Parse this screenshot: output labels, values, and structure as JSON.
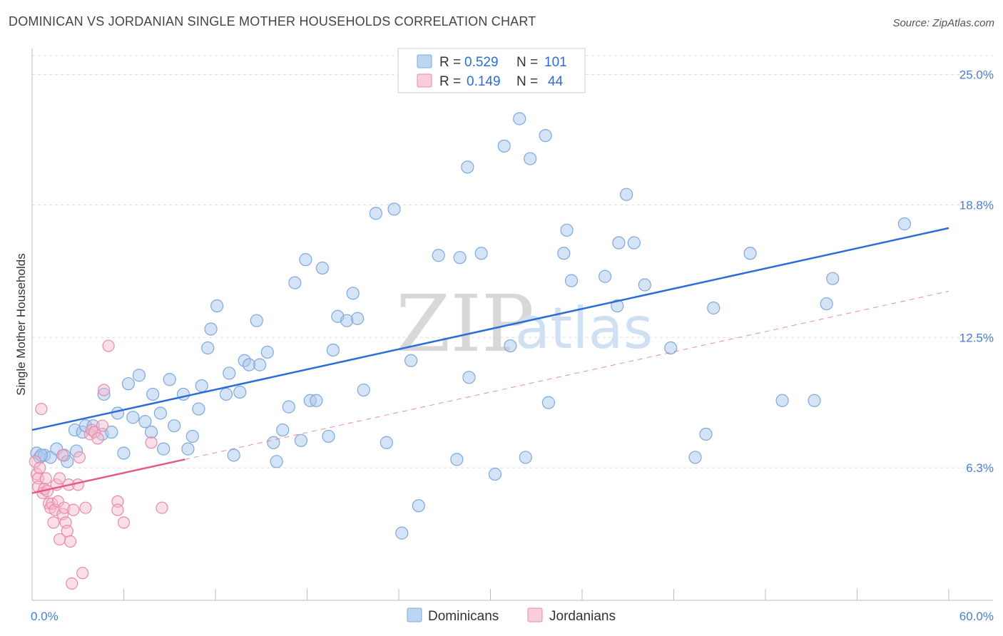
{
  "title": "DOMINICAN VS JORDANIAN SINGLE MOTHER HOUSEHOLDS CORRELATION CHART",
  "source": "Source: ZipAtlas.com",
  "watermark": {
    "zip": "ZIP",
    "atlas": "atlas"
  },
  "legend": {
    "dominicans": {
      "r_label": "R =",
      "r_value": "0.529",
      "n_label": "N =",
      "n_value": "101"
    },
    "jordanians": {
      "r_label": "R =",
      "r_value": "0.149",
      "n_label": "N =",
      "n_value": "44"
    }
  },
  "colors": {
    "dominican_fill": "#a9c8ec",
    "dominican_stroke": "#7fa8dc",
    "dominican_line": "#2a6dd9",
    "jordanian_fill": "#f6b9cd",
    "jordanian_stroke": "#e88aa8",
    "jordanian_line": "#e35a86"
  },
  "chart_data": {
    "type": "scatter",
    "title": "DOMINICAN VS JORDANIAN SINGLE MOTHER HOUSEHOLDS CORRELATION CHART",
    "xlabel": "",
    "ylabel": "Single Mother Households",
    "xlim": [
      0,
      60
    ],
    "ylim": [
      0,
      25.9
    ],
    "x_tick_labels": [
      "0.0%",
      "60.0%"
    ],
    "y_ticks": [
      6.3,
      12.5,
      18.8,
      25.0
    ],
    "y_tick_labels": [
      "6.3%",
      "12.5%",
      "18.8%",
      "25.0%"
    ],
    "legend_bottom": [
      "Dominicans",
      "Jordanians"
    ],
    "series": [
      {
        "name": "Dominicans",
        "trend": {
          "x": [
            0,
            60
          ],
          "y": [
            8.1,
            17.7
          ]
        },
        "points": [
          [
            0.3,
            7.0
          ],
          [
            0.5,
            6.8
          ],
          [
            0.8,
            6.9
          ],
          [
            1.2,
            6.8
          ],
          [
            1.6,
            7.2
          ],
          [
            2.1,
            6.9
          ],
          [
            2.3,
            6.6
          ],
          [
            2.8,
            8.1
          ],
          [
            2.9,
            7.1
          ],
          [
            3.3,
            8.0
          ],
          [
            3.5,
            8.3
          ],
          [
            4.0,
            8.3
          ],
          [
            4.6,
            7.9
          ],
          [
            4.7,
            9.8
          ],
          [
            5.2,
            8.0
          ],
          [
            5.6,
            8.9
          ],
          [
            6.0,
            7.0
          ],
          [
            6.3,
            10.3
          ],
          [
            6.6,
            8.7
          ],
          [
            7.0,
            10.7
          ],
          [
            7.4,
            8.5
          ],
          [
            7.8,
            8.0
          ],
          [
            7.9,
            9.8
          ],
          [
            8.4,
            8.9
          ],
          [
            8.6,
            7.2
          ],
          [
            9.0,
            10.5
          ],
          [
            9.3,
            8.3
          ],
          [
            9.9,
            9.8
          ],
          [
            10.2,
            7.2
          ],
          [
            10.5,
            7.8
          ],
          [
            10.9,
            9.1
          ],
          [
            11.1,
            10.2
          ],
          [
            11.5,
            12.0
          ],
          [
            11.7,
            12.9
          ],
          [
            12.1,
            14.0
          ],
          [
            12.7,
            9.8
          ],
          [
            12.9,
            10.8
          ],
          [
            13.2,
            6.9
          ],
          [
            13.6,
            9.9
          ],
          [
            13.9,
            11.4
          ],
          [
            14.2,
            11.2
          ],
          [
            14.7,
            13.3
          ],
          [
            14.9,
            11.2
          ],
          [
            15.4,
            11.8
          ],
          [
            15.8,
            7.5
          ],
          [
            16.0,
            6.6
          ],
          [
            16.4,
            8.1
          ],
          [
            16.8,
            9.2
          ],
          [
            17.2,
            15.1
          ],
          [
            17.6,
            7.6
          ],
          [
            17.9,
            16.2
          ],
          [
            18.2,
            9.5
          ],
          [
            18.6,
            9.5
          ],
          [
            19.0,
            15.8
          ],
          [
            19.4,
            7.8
          ],
          [
            19.7,
            11.9
          ],
          [
            20.0,
            13.5
          ],
          [
            20.6,
            13.3
          ],
          [
            21.0,
            14.6
          ],
          [
            21.3,
            13.4
          ],
          [
            21.7,
            10.0
          ],
          [
            22.5,
            18.4
          ],
          [
            23.2,
            7.5
          ],
          [
            23.7,
            18.6
          ],
          [
            24.2,
            3.2
          ],
          [
            24.8,
            11.4
          ],
          [
            25.3,
            4.5
          ],
          [
            26.6,
            16.4
          ],
          [
            27.8,
            6.7
          ],
          [
            28.0,
            16.3
          ],
          [
            28.5,
            20.6
          ],
          [
            28.6,
            10.6
          ],
          [
            29.4,
            16.5
          ],
          [
            30.3,
            6.0
          ],
          [
            30.9,
            21.6
          ],
          [
            31.3,
            12.1
          ],
          [
            31.9,
            22.9
          ],
          [
            32.3,
            6.8
          ],
          [
            32.6,
            21.0
          ],
          [
            33.6,
            22.1
          ],
          [
            33.8,
            9.4
          ],
          [
            34.8,
            16.5
          ],
          [
            35.0,
            17.6
          ],
          [
            35.3,
            15.2
          ],
          [
            37.5,
            15.4
          ],
          [
            38.3,
            14.0
          ],
          [
            38.4,
            17.0
          ],
          [
            38.9,
            19.3
          ],
          [
            39.4,
            17.0
          ],
          [
            40.1,
            15.0
          ],
          [
            41.8,
            12.0
          ],
          [
            43.4,
            6.8
          ],
          [
            44.1,
            7.9
          ],
          [
            44.6,
            13.9
          ],
          [
            47.0,
            16.5
          ],
          [
            49.1,
            9.5
          ],
          [
            51.2,
            9.5
          ],
          [
            52.0,
            14.1
          ],
          [
            52.4,
            15.3
          ],
          [
            57.1,
            17.9
          ],
          [
            0.6,
            6.9
          ]
        ]
      },
      {
        "name": "Jordanians",
        "trend": {
          "x": [
            0,
            10
          ],
          "y": [
            5.1,
            6.7
          ]
        },
        "points": [
          [
            0.2,
            6.6
          ],
          [
            0.3,
            6.0
          ],
          [
            0.4,
            5.8
          ],
          [
            0.4,
            5.4
          ],
          [
            0.6,
            9.1
          ],
          [
            0.7,
            5.1
          ],
          [
            0.8,
            5.3
          ],
          [
            0.9,
            5.8
          ],
          [
            1.0,
            5.2
          ],
          [
            1.1,
            4.6
          ],
          [
            1.2,
            4.4
          ],
          [
            1.3,
            4.6
          ],
          [
            1.4,
            3.7
          ],
          [
            1.5,
            4.3
          ],
          [
            1.6,
            5.5
          ],
          [
            1.7,
            4.7
          ],
          [
            1.8,
            5.8
          ],
          [
            1.8,
            2.9
          ],
          [
            2.0,
            4.1
          ],
          [
            2.0,
            6.9
          ],
          [
            2.1,
            4.4
          ],
          [
            2.2,
            3.7
          ],
          [
            2.3,
            3.3
          ],
          [
            2.4,
            5.5
          ],
          [
            2.5,
            2.8
          ],
          [
            2.6,
            0.8
          ],
          [
            2.7,
            4.3
          ],
          [
            3.0,
            5.5
          ],
          [
            3.1,
            6.8
          ],
          [
            3.3,
            1.3
          ],
          [
            3.5,
            4.4
          ],
          [
            3.8,
            7.9
          ],
          [
            3.9,
            8.1
          ],
          [
            4.1,
            8.0
          ],
          [
            4.3,
            7.7
          ],
          [
            4.6,
            8.3
          ],
          [
            4.7,
            10.0
          ],
          [
            5.0,
            12.1
          ],
          [
            5.6,
            4.7
          ],
          [
            5.6,
            4.3
          ],
          [
            6.0,
            3.7
          ],
          [
            7.8,
            7.5
          ],
          [
            8.5,
            4.4
          ],
          [
            0.5,
            6.3
          ]
        ]
      }
    ]
  },
  "bottom_legend": {
    "dominicans": "Dominicans",
    "jordanians": "Jordanians"
  }
}
